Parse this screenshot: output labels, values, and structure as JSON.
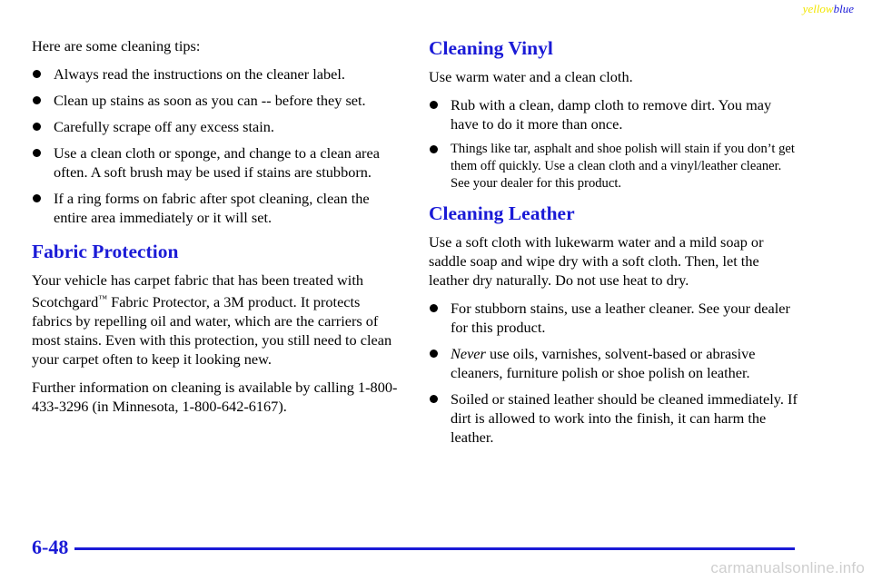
{
  "header": {
    "corner_yellow": "yellow",
    "corner_blue": "blue"
  },
  "left": {
    "intro": "Here are some cleaning tips:",
    "tips": [
      "Always read the instructions on the cleaner label.",
      "Clean up stains as soon as you can -- before they set.",
      "Carefully scrape off any excess stain.",
      "Use a clean cloth or sponge, and change to a clean area often. A soft brush may be used if stains are stubborn.",
      "If a ring forms on fabric after spot cleaning, clean the entire area immediately or it will set."
    ],
    "fabric_heading": "Fabric Protection",
    "fabric_text_before_tm": "Your vehicle has carpet fabric that has been treated with Scotchgard",
    "tm_symbol": "™",
    "fabric_text_after_tm": " Fabric Protector, a 3M product. It protects fabrics by repelling oil and water, which are the carriers of most stains. Even with this protection, you still need to clean your carpet often to keep it looking new.",
    "further_info": "Further information on cleaning is available by calling 1-800-433-3296 (in Minnesota, 1-800-642-6167)."
  },
  "right": {
    "vinyl_heading": "Cleaning Vinyl",
    "vinyl_intro": "Use warm water and a clean cloth.",
    "vinyl_tips": [
      "Rub with a clean, damp cloth to remove dirt. You may have to do it more than once.",
      "Things like tar, asphalt and shoe polish will stain if you don’t get them off quickly. Use a clean cloth and a vinyl/leather cleaner. See your dealer for this product."
    ],
    "leather_heading": "Cleaning Leather",
    "leather_intro": "Use a soft cloth with lukewarm water and a mild soap or saddle soap and wipe dry with a soft cloth. Then, let the leather dry naturally. Do not use heat to dry.",
    "leather_tip_1": "For stubborn stains, use a leather cleaner. See your dealer for this product.",
    "leather_tip_2_emph": "Never",
    "leather_tip_2_rest": " use oils, varnishes, solvent-based or abrasive cleaners, furniture polish or shoe polish on leather.",
    "leather_tip_3": "Soiled or stained leather should be cleaned immediately. If dirt is allowed to work into the finish, it can harm the leather."
  },
  "footer": {
    "page_number": "6-48",
    "watermark": "carmanualsonline.info"
  },
  "colors": {
    "heading_blue": "#1a1ad6",
    "corner_yellow": "#f2e600",
    "watermark_gray": "#cfcfcf"
  }
}
